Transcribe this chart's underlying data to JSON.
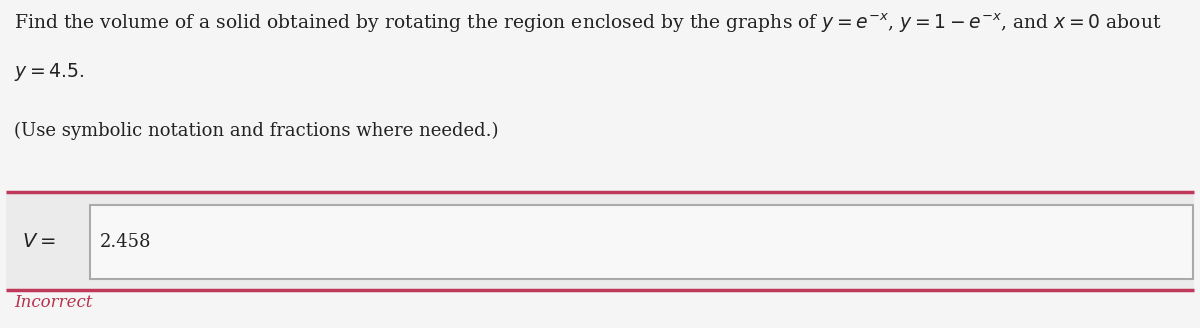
{
  "background_color": "#f5f5f5",
  "main_text_line1": "Find the volume of a solid obtained by rotating the region enclosed by the graphs of $y = e^{-x}$, $y = 1 - e^{-x}$, and $x = 0$ about",
  "main_text_line2": "$y = 4.5$.",
  "sub_text": "(Use symbolic notation and fractions where needed.)",
  "label_text": "$V =$",
  "answer_text": "2.458",
  "incorrect_text": "Incorrect",
  "incorrect_color": "#b5314c",
  "red_line_color": "#c0395a",
  "answer_box_border_color": "#aaaaaa",
  "answer_box_bg": "#f0f0f0",
  "outer_box_bg": "#ebebeb",
  "text_color": "#222222",
  "font_size_main": 13.5,
  "font_size_sub": 13,
  "font_size_label": 14,
  "font_size_answer": 13,
  "font_size_incorrect": 12
}
